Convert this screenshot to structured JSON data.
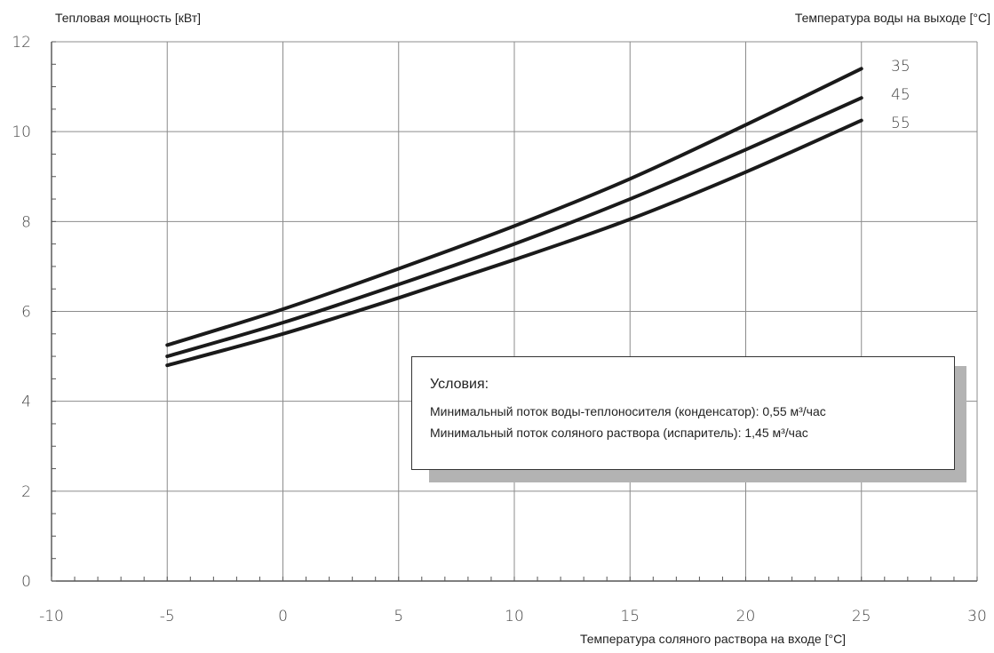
{
  "chart_data": {
    "type": "line",
    "ylabel": "Тепловая мощность [кВт]",
    "legend_title": "Температура воды на выходе [°C]",
    "xlabel": "Температура соляного раствора на входе [°C]",
    "xlim": [
      -10,
      30
    ],
    "ylim": [
      0,
      12
    ],
    "x_ticks": [
      "-10",
      "-5",
      "0",
      "5",
      "10",
      "15",
      "20",
      "25",
      "30"
    ],
    "y_ticks": [
      "0",
      "2",
      "4",
      "6",
      "8",
      "10",
      "12"
    ],
    "grid": true,
    "x": [
      -5,
      0,
      5,
      10,
      15,
      20,
      25
    ],
    "series": [
      {
        "name": "35",
        "values": [
          5.25,
          6.05,
          6.95,
          7.9,
          8.95,
          10.15,
          11.4
        ]
      },
      {
        "name": "45",
        "values": [
          5.0,
          5.75,
          6.6,
          7.5,
          8.5,
          9.6,
          10.75
        ]
      },
      {
        "name": "55",
        "values": [
          4.8,
          5.5,
          6.3,
          7.15,
          8.05,
          9.1,
          10.25
        ]
      }
    ],
    "note": {
      "title": "Условия:",
      "lines": [
        "Минимальный поток воды-теплоносителя (конденсатор): 0,55 м³/час",
        "Минимальный поток соляного раствора (испаритель): 1,45 м³/час"
      ]
    },
    "colors": {
      "line": "#1a1a1a",
      "grid": "#8c8c8c",
      "shadow": "#b3b3b3"
    }
  }
}
